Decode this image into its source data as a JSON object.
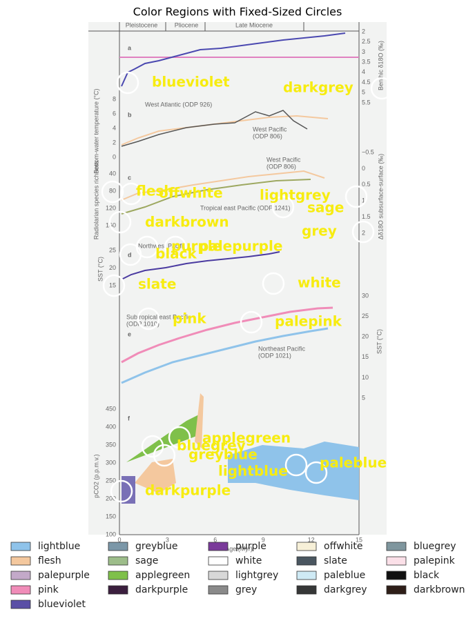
{
  "title": "Color Regions with Fixed-Sized Circles",
  "figure": {
    "eras": [
      "Pleistocene",
      "Pliocene",
      "Late Miocene"
    ],
    "panels": [
      "a",
      "b",
      "c",
      "d",
      "e",
      "f"
    ],
    "annotations": [
      [
        "West Atlantic (ODP 926)"
      ],
      [
        "West Pacific",
        "(ODP 806)"
      ],
      [
        "West Pacific",
        "(ODP 806)"
      ],
      [
        "Tropical east Pacific (ODP 1241)"
      ],
      [
        "Northwest Pacific"
      ],
      [
        "Subtropical east Pacific",
        "(ODP 1010)"
      ],
      [
        "Northeast Pacific",
        "(ODP 1021)"
      ]
    ],
    "axis_labels": [
      "Benthic δ18O (‰)",
      "Bottom-water temperature (°C)",
      "Radiolarian species richness",
      "Δδ18O subsurface-surface (‰)",
      "SST (°C)",
      "SST (°C)",
      "pCO2 (p.p.m.v.)",
      "Age (Myr)"
    ],
    "tick_groups": [
      [
        "2",
        "2.5",
        "3",
        "3.5",
        "4",
        "4.5",
        "5",
        "5.5"
      ],
      [
        "8",
        "6",
        "4",
        "2",
        "0"
      ],
      [
        "−0.5",
        "0",
        "0.5",
        "1",
        "1.5",
        "2"
      ],
      [
        "40",
        "80",
        "120",
        "160"
      ],
      [
        "25",
        "20",
        "15"
      ],
      [
        "30",
        "25",
        "20",
        "15",
        "10",
        "5"
      ],
      [
        "450",
        "400",
        "350",
        "300",
        "250",
        "200",
        "150",
        "100"
      ],
      [
        "0",
        "3",
        "6",
        "9",
        "12",
        "15"
      ]
    ]
  },
  "regions": [
    "blueviolet",
    "darkgrey",
    "flesh",
    "offwhite",
    "lightgrey",
    "sage",
    "darkbrown",
    "grey",
    "purple",
    "palepurple",
    "black",
    "slate",
    "white",
    "pink",
    "palepink",
    "applegreen",
    "bluegrey",
    "greyblue",
    "lightblue",
    "paleblue",
    "darkpurple"
  ],
  "legend": [
    {
      "name": "lightblue",
      "color": "#8fc3ea"
    },
    {
      "name": "flesh",
      "color": "#f4c89e"
    },
    {
      "name": "palepurple",
      "color": "#c3a9c9"
    },
    {
      "name": "pink",
      "color": "#f08cb8"
    },
    {
      "name": "blueviolet",
      "color": "#5a4fa6"
    },
    {
      "name": "greyblue",
      "color": "#7b97a8"
    },
    {
      "name": "sage",
      "color": "#9dbd8a"
    },
    {
      "name": "applegreen",
      "color": "#7fc04a"
    },
    {
      "name": "darkpurple",
      "color": "#3b1f3e"
    },
    {
      "name": "purple",
      "color": "#7a3a9a"
    },
    {
      "name": "white",
      "color": "#ffffff"
    },
    {
      "name": "lightgrey",
      "color": "#d8d8d8"
    },
    {
      "name": "grey",
      "color": "#8a8a8a"
    },
    {
      "name": "offwhite",
      "color": "#f7f0d8"
    },
    {
      "name": "slate",
      "color": "#4a5660"
    },
    {
      "name": "paleblue",
      "color": "#cfeaf5"
    },
    {
      "name": "darkgrey",
      "color": "#363737"
    },
    {
      "name": "bluegrey",
      "color": "#7f969e"
    },
    {
      "name": "palepink",
      "color": "#fbe0e8"
    },
    {
      "name": "black",
      "color": "#111111"
    },
    {
      "name": "darkbrown",
      "color": "#2e1e18"
    }
  ]
}
